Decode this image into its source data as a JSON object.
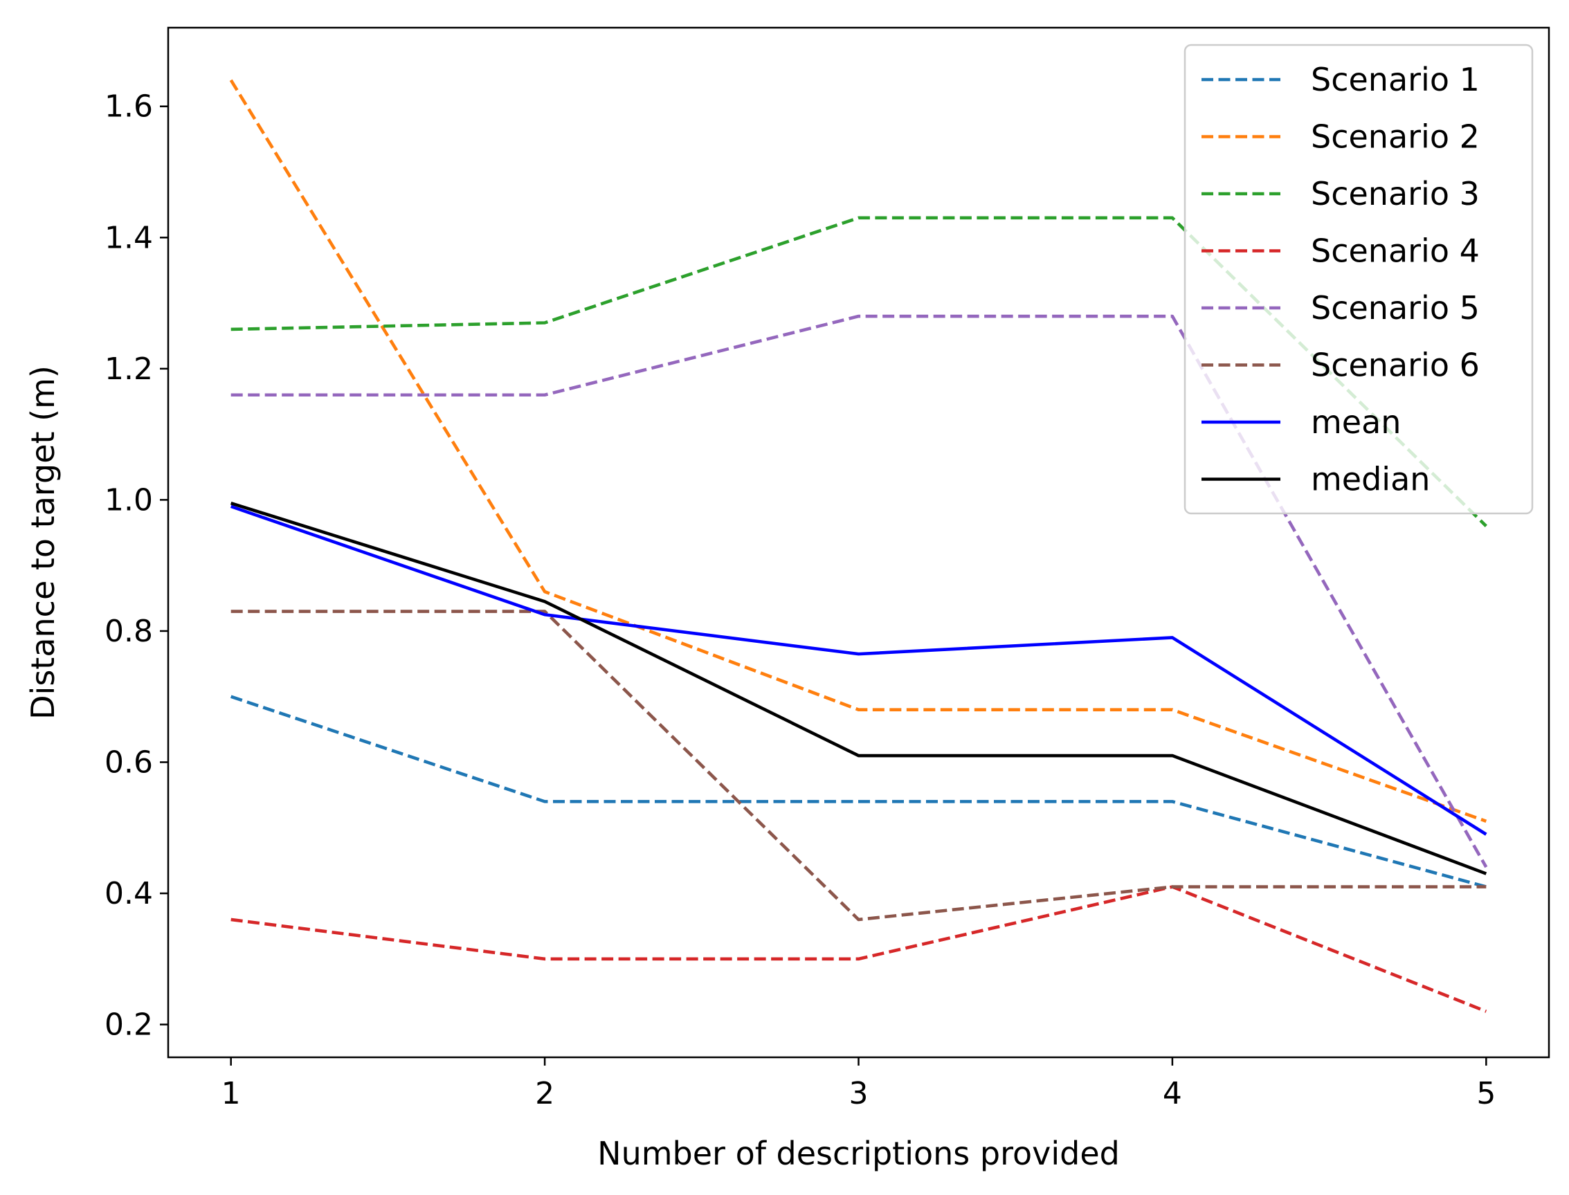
{
  "chart_data": {
    "type": "line",
    "title": "",
    "xlabel": "Number of descriptions provided",
    "ylabel": "Distance to target (m)",
    "x": [
      1,
      2,
      3,
      4,
      5
    ],
    "xlim": [
      0.8,
      5.2
    ],
    "ylim": [
      0.15,
      1.72
    ],
    "xticks": [
      1,
      2,
      3,
      4,
      5
    ],
    "yticks": [
      0.2,
      0.4,
      0.6,
      0.8,
      1.0,
      1.2,
      1.4,
      1.6
    ],
    "ytick_labels": [
      "0.2",
      "0.4",
      "0.6",
      "0.8",
      "1.0",
      "1.2",
      "1.4",
      "1.6"
    ],
    "grid": false,
    "legend_position": "top-right",
    "series": [
      {
        "name": "Scenario 1",
        "color": "#1f77b4",
        "style": "dashed",
        "values": [
          0.7,
          0.54,
          0.54,
          0.54,
          0.41
        ]
      },
      {
        "name": "Scenario 2",
        "color": "#ff7f0e",
        "style": "dashed",
        "values": [
          1.64,
          0.86,
          0.68,
          0.68,
          0.51
        ]
      },
      {
        "name": "Scenario 3",
        "color": "#2ca02c",
        "style": "dashed",
        "values": [
          1.26,
          1.27,
          1.43,
          1.43,
          0.96
        ]
      },
      {
        "name": "Scenario 4",
        "color": "#d62728",
        "style": "dashed",
        "values": [
          0.36,
          0.3,
          0.3,
          0.41,
          0.22
        ]
      },
      {
        "name": "Scenario 5",
        "color": "#9467bd",
        "style": "dashed",
        "values": [
          1.16,
          1.16,
          1.28,
          1.28,
          0.44
        ]
      },
      {
        "name": "Scenario 6",
        "color": "#8c564b",
        "style": "dashed",
        "values": [
          0.83,
          0.83,
          0.36,
          0.41,
          0.41
        ]
      },
      {
        "name": "mean",
        "color": "#0000ff",
        "style": "solid",
        "values": [
          0.99,
          0.825,
          0.765,
          0.79,
          0.49
        ]
      },
      {
        "name": "median",
        "color": "#000000",
        "style": "solid",
        "values": [
          0.995,
          0.845,
          0.61,
          0.61,
          0.43
        ]
      }
    ]
  }
}
